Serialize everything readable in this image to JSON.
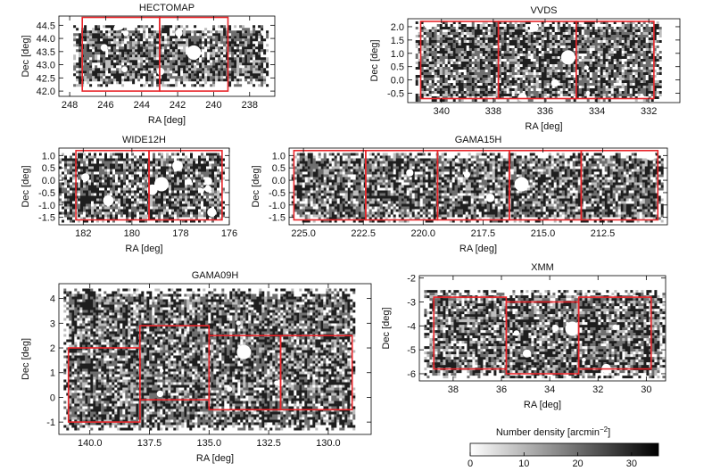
{
  "figure": {
    "colorbar": {
      "label": "Number density [arcmin",
      "label_exp": "−2",
      "label_close": "]",
      "ticks": [
        "0",
        "10",
        "20",
        "30"
      ],
      "range": [
        0,
        35
      ]
    },
    "colors": {
      "box": "#e8262b",
      "map_dark": "#111111",
      "frame": "#000000"
    }
  },
  "chart_data": [
    {
      "type": "heatmap",
      "title": "HECTOMAP",
      "xlabel": "RA [deg]",
      "ylabel": "Dec [deg]",
      "xlim": [
        248.6,
        236.6
      ],
      "ylim": [
        41.8,
        44.85
      ],
      "xticks": [
        248,
        246,
        244,
        242,
        240,
        238
      ],
      "xtick_labels": [
        "248",
        "246",
        "244",
        "242",
        "240",
        "238"
      ],
      "yticks": [
        42.0,
        42.5,
        43.0,
        43.5,
        44.0,
        44.5
      ],
      "ytick_labels": [
        "42.0",
        "42.5",
        "43.0",
        "43.5",
        "44.0",
        "44.5"
      ],
      "coverage": {
        "ra": [
          247.8,
          237.0
        ],
        "dec": [
          42.2,
          44.5
        ]
      },
      "boxes": [
        {
          "ra": [
            247.3,
            243.0
          ],
          "dec": [
            42.0,
            44.8
          ]
        },
        {
          "ra": [
            243.0,
            239.2
          ],
          "dec": [
            42.0,
            44.8
          ]
        }
      ]
    },
    {
      "type": "heatmap",
      "title": "VVDS",
      "xlabel": "RA [deg]",
      "ylabel": "Dec [deg]",
      "xlim": [
        341.3,
        330.8
      ],
      "ylim": [
        -0.85,
        2.3
      ],
      "xticks": [
        340,
        338,
        336,
        334,
        332
      ],
      "xtick_labels": [
        "340",
        "338",
        "336",
        "334",
        "332"
      ],
      "yticks": [
        -0.5,
        0.0,
        0.5,
        1.0,
        1.5,
        2.0
      ],
      "ytick_labels": [
        "-0.5",
        "0.0",
        "0.5",
        "1.0",
        "1.5",
        "2.0"
      ],
      "coverage": {
        "ra": [
          341.0,
          331.5
        ],
        "dec": [
          -0.8,
          2.2
        ]
      },
      "boxes": [
        {
          "ra": [
            340.8,
            337.8
          ],
          "dec": [
            -0.7,
            2.2
          ]
        },
        {
          "ra": [
            337.8,
            334.8
          ],
          "dec": [
            -0.7,
            2.2
          ]
        },
        {
          "ra": [
            334.8,
            331.8
          ],
          "dec": [
            -0.7,
            2.2
          ]
        }
      ]
    },
    {
      "type": "heatmap",
      "title": "WIDE12H",
      "xlabel": "RA [deg]",
      "ylabel": "Dec [deg]",
      "xlim": [
        183.0,
        176.0
      ],
      "ylim": [
        -1.8,
        1.3
      ],
      "xticks": [
        182,
        180,
        178,
        176
      ],
      "xtick_labels": [
        "182",
        "180",
        "178",
        "176"
      ],
      "yticks": [
        -1.5,
        -1.0,
        -0.5,
        0.0,
        0.5,
        1.0
      ],
      "ytick_labels": [
        "-1.5",
        "-1.0",
        "-0.5",
        "0.0",
        "0.5",
        "1.0"
      ],
      "coverage": {
        "ra": [
          183.0,
          176.2
        ],
        "dec": [
          -1.7,
          1.1
        ]
      },
      "boxes": [
        {
          "ra": [
            182.3,
            179.3
          ],
          "dec": [
            -1.6,
            1.2
          ]
        },
        {
          "ra": [
            179.3,
            176.3
          ],
          "dec": [
            -1.6,
            1.2
          ]
        }
      ]
    },
    {
      "type": "heatmap",
      "title": "GAMA15H",
      "xlabel": "RA [deg]",
      "ylabel": "Dec [deg]",
      "xlim": [
        225.6,
        209.8
      ],
      "ylim": [
        -1.8,
        1.3
      ],
      "xticks": [
        225.0,
        222.5,
        220.0,
        217.5,
        215.0,
        212.5
      ],
      "xtick_labels": [
        "225.0",
        "222.5",
        "220.0",
        "217.5",
        "215.0",
        "212.5"
      ],
      "yticks": [
        -1.5,
        -1.0,
        -0.5,
        0.0,
        0.5,
        1.0
      ],
      "ytick_labels": [
        "-1.5",
        "-1.0",
        "-0.5",
        "0.0",
        "0.5",
        "1.0"
      ],
      "coverage": {
        "ra": [
          225.5,
          210.0
        ],
        "dec": [
          -1.7,
          1.1
        ]
      },
      "boxes": [
        {
          "ra": [
            225.4,
            222.4
          ],
          "dec": [
            -1.6,
            1.2
          ]
        },
        {
          "ra": [
            222.4,
            219.4
          ],
          "dec": [
            -1.6,
            1.2
          ]
        },
        {
          "ra": [
            219.4,
            216.4
          ],
          "dec": [
            -1.6,
            1.2
          ]
        },
        {
          "ra": [
            216.4,
            213.4
          ],
          "dec": [
            -1.6,
            1.2
          ]
        },
        {
          "ra": [
            213.4,
            210.2
          ],
          "dec": [
            -1.6,
            1.2
          ]
        }
      ]
    },
    {
      "type": "heatmap",
      "title": "GAMA09H",
      "xlabel": "RA [deg]",
      "ylabel": "Dec [deg]",
      "xlim": [
        141.3,
        128.2
      ],
      "ylim": [
        -1.5,
        4.6
      ],
      "xticks": [
        140.0,
        137.5,
        135.0,
        132.5,
        130.0
      ],
      "xtick_labels": [
        "140.0",
        "137.5",
        "135.0",
        "132.5",
        "130.0"
      ],
      "yticks": [
        -1,
        0,
        1,
        2,
        3,
        4
      ],
      "ytick_labels": [
        "-1",
        "0",
        "1",
        "2",
        "3",
        "4"
      ],
      "coverage": {
        "ra": [
          141.1,
          128.9
        ],
        "dec": [
          -1.3,
          4.4
        ]
      },
      "boxes": [
        {
          "ra": [
            140.9,
            137.9
          ],
          "dec": [
            -1.0,
            2.0
          ]
        },
        {
          "ra": [
            137.9,
            135.0
          ],
          "dec": [
            -0.1,
            2.9
          ]
        },
        {
          "ra": [
            135.0,
            132.0
          ],
          "dec": [
            -0.5,
            2.5
          ]
        },
        {
          "ra": [
            132.0,
            129.0
          ],
          "dec": [
            -0.5,
            2.5
          ]
        }
      ]
    },
    {
      "type": "heatmap",
      "title": "XMM",
      "xlabel": "RA [deg]",
      "ylabel": "Dec [deg]",
      "xlim": [
        39.4,
        29.2
      ],
      "ylim": [
        -6.3,
        -1.9
      ],
      "xticks": [
        38,
        36,
        34,
        32,
        30
      ],
      "xtick_labels": [
        "38",
        "36",
        "34",
        "32",
        "30"
      ],
      "yticks": [
        -6,
        -5,
        -4,
        -3,
        -2
      ],
      "ytick_labels": [
        "-6",
        "-5",
        "-4",
        "-3",
        "-2"
      ],
      "coverage": {
        "ra": [
          39.2,
          29.3
        ],
        "dec": [
          -6.1,
          -2.5
        ]
      },
      "boxes": [
        {
          "ra": [
            38.8,
            35.8
          ],
          "dec": [
            -5.8,
            -2.8
          ]
        },
        {
          "ra": [
            35.8,
            32.8
          ],
          "dec": [
            -6.0,
            -3.0
          ]
        },
        {
          "ra": [
            32.8,
            29.8
          ],
          "dec": [
            -5.8,
            -2.8
          ]
        }
      ]
    }
  ]
}
